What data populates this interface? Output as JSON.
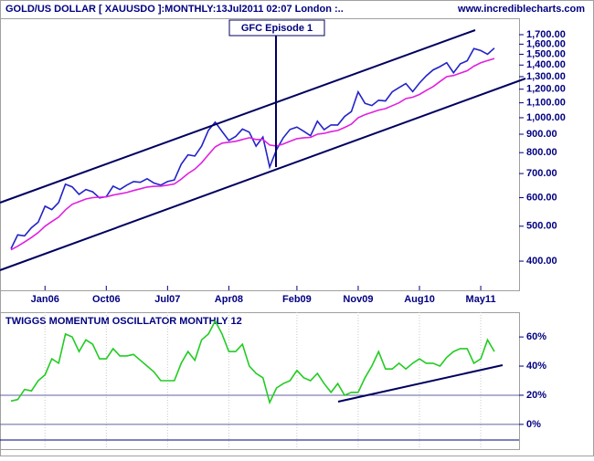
{
  "chart_data": [
    {
      "type": "line",
      "title": "GOLD/US DOLLAR [ XAUUSDO ]:MONTHLY:13Jul2011 02:07 London :..",
      "source": "www.incrediblecharts.com",
      "annotation": "GFC Episode 1",
      "log_scale": true,
      "categories": [
        null,
        null,
        null,
        null,
        null,
        "Jan06",
        null,
        null,
        null,
        null,
        null,
        null,
        null,
        null,
        "Oct06",
        null,
        null,
        null,
        null,
        null,
        null,
        null,
        null,
        "Jul07",
        null,
        null,
        null,
        null,
        null,
        null,
        null,
        null,
        "Apr08",
        null,
        null,
        null,
        null,
        null,
        null,
        null,
        null,
        null,
        "Feb09",
        null,
        null,
        null,
        null,
        null,
        null,
        null,
        null,
        "Nov09",
        null,
        null,
        null,
        null,
        null,
        null,
        null,
        null,
        "Aug10",
        null,
        null,
        null,
        null,
        null,
        null,
        null,
        null,
        "May11",
        null,
        null
      ],
      "series": [
        {
          "color": "#2323c8",
          "values": [
            433,
            473,
            470,
            495,
            513,
            568,
            556,
            582,
            654,
            643,
            613,
            632,
            623,
            599,
            604,
            646,
            632,
            650,
            665,
            662,
            677,
            659,
            650,
            665,
            672,
            743,
            789,
            783,
            834,
            923,
            972,
            916,
            865,
            887,
            930,
            912,
            834,
            884,
            730,
            815,
            880,
            928,
            942,
            917,
            891,
            978,
            927,
            955,
            955,
            1008,
            1040,
            1180,
            1096,
            1081,
            1118,
            1113,
            1180,
            1213,
            1244,
            1181,
            1248,
            1307,
            1357,
            1386,
            1421,
            1333,
            1411,
            1439,
            1556,
            1536,
            1500,
            1560
          ]
        },
        {
          "color": "#e020e0",
          "values": [
            430,
            440,
            452,
            465,
            480,
            500,
            515,
            530,
            555,
            575,
            585,
            595,
            600,
            602,
            603,
            610,
            615,
            620,
            628,
            635,
            642,
            645,
            646,
            650,
            655,
            675,
            700,
            720,
            750,
            790,
            830,
            850,
            855,
            860,
            870,
            880,
            870,
            870,
            840,
            835,
            845,
            860,
            875,
            880,
            882,
            900,
            905,
            915,
            922,
            940,
            960,
            1000,
            1020,
            1035,
            1050,
            1060,
            1080,
            1100,
            1130,
            1140,
            1160,
            1190,
            1220,
            1260,
            1300,
            1310,
            1330,
            1350,
            1390,
            1420,
            1440,
            1460
          ]
        }
      ],
      "ylim": [
        332,
        1888
      ],
      "yticks": [
        {
          "value": 400,
          "label": "400.00"
        },
        {
          "value": 500,
          "label": "500.00"
        },
        {
          "value": 600,
          "label": "600.00"
        },
        {
          "value": 700,
          "label": "700.00"
        },
        {
          "value": 800,
          "label": "800.00"
        },
        {
          "value": 900,
          "label": "900.00"
        },
        {
          "value": 1000,
          "label": "1,000.00"
        },
        {
          "value": 1100,
          "label": "1,100.00"
        },
        {
          "value": 1200,
          "label": "1,200.00"
        },
        {
          "value": 1300,
          "label": "1,300.00"
        },
        {
          "value": 1400,
          "label": "1,400.00"
        },
        {
          "value": 1500,
          "label": "1,500.00"
        },
        {
          "value": 1600,
          "label": "1,600.00"
        },
        {
          "value": 1700,
          "label": "1,700.00"
        }
      ]
    },
    {
      "type": "line",
      "title": "TWIGGS MOMENTUM OSCILLATOR MONTHLY 12",
      "series": [
        {
          "color": "#22cc22",
          "values": [
            16,
            17,
            24,
            23,
            30,
            34,
            45,
            42,
            62,
            60,
            50,
            58,
            55,
            45,
            45,
            52,
            47,
            47,
            48,
            44,
            40,
            36,
            30,
            30,
            30,
            42,
            50,
            44,
            58,
            62,
            71,
            62,
            50,
            50,
            55,
            40,
            35,
            32,
            15,
            25,
            28,
            30,
            37,
            32,
            30,
            35,
            28,
            22,
            28,
            20,
            22,
            22,
            32,
            40,
            50,
            38,
            38,
            42,
            38,
            42,
            45,
            42,
            42,
            40,
            46,
            50,
            52,
            52,
            42,
            45,
            58,
            50
          ]
        }
      ],
      "ylim": [
        -17,
        77
      ],
      "yticks": [
        {
          "value": 0,
          "label": "0%"
        },
        {
          "value": 20,
          "label": "20%"
        },
        {
          "value": 40,
          "label": "40%"
        },
        {
          "value": 60,
          "label": "60%"
        }
      ],
      "hlines": [
        20,
        0
      ]
    }
  ]
}
